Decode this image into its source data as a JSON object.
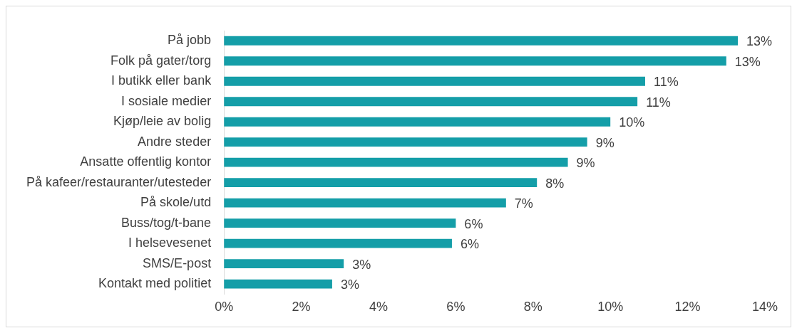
{
  "chart_data": {
    "type": "bar",
    "orientation": "horizontal",
    "categories": [
      "På jobb",
      "Folk på gater/torg",
      "I butikk eller bank",
      "I sosiale medier",
      "Kjøp/leie av bolig",
      "Andre steder",
      "Ansatte offentlig kontor",
      "På kafeer/restauranter/utesteder",
      "På skole/utd",
      "Buss/tog/t-bane",
      "I helsevesenet",
      "SMS/E-post",
      "Kontakt med politiet"
    ],
    "values": [
      13.3,
      13.0,
      10.9,
      10.7,
      10.0,
      9.4,
      8.9,
      8.1,
      7.3,
      6.0,
      5.9,
      3.1,
      2.8
    ],
    "value_labels": [
      "13%",
      "13%",
      "11%",
      "11%",
      "10%",
      "9%",
      "9%",
      "8%",
      "7%",
      "6%",
      "6%",
      "3%",
      "3%"
    ],
    "color": "#149ea8",
    "xlim": [
      0,
      14
    ],
    "xticks": [
      {
        "value": 0,
        "label": "0%"
      },
      {
        "value": 2,
        "label": "2%"
      },
      {
        "value": 4,
        "label": "4%"
      },
      {
        "value": 6,
        "label": "6%"
      },
      {
        "value": 8,
        "label": "8%"
      },
      {
        "value": 10,
        "label": "10%"
      },
      {
        "value": 12,
        "label": "12%"
      },
      {
        "value": 14,
        "label": "14%"
      }
    ],
    "grid": false,
    "legend": false
  }
}
